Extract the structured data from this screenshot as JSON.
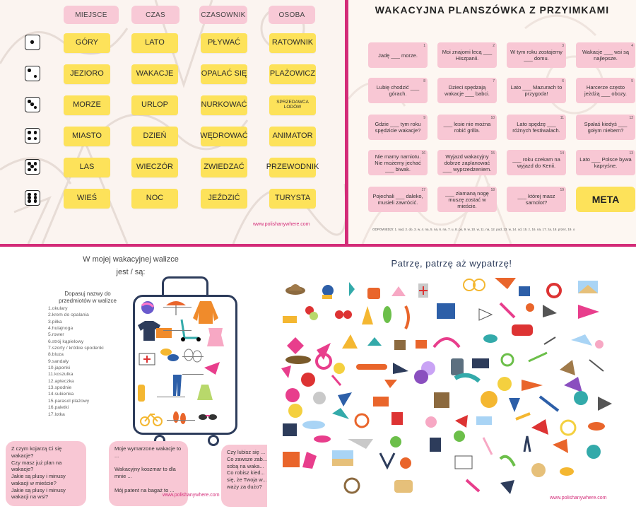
{
  "board_game": {
    "headers": [
      "MIEJSCE",
      "CZAS",
      "CZASOWNIK",
      "OSOBA"
    ],
    "columns": [
      [
        "GÓRY",
        "JEZIORO",
        "MORZE",
        "MIASTO",
        "LAS",
        "WIEŚ"
      ],
      [
        "LATO",
        "WAKACJE",
        "URLOP",
        "DZIEŃ",
        "WIECZÓR",
        "NOC"
      ],
      [
        "PŁYWAĆ",
        "OPALAĆ SIĘ",
        "NURKOWAĆ",
        "WĘDROWAĆ",
        "ZWIEDZAĆ",
        "JEŹDZIĆ"
      ],
      [
        "RATOWNIK",
        "PLAŻOWICZ",
        "SPRZEDAWCA LODÓW",
        "ANIMATOR",
        "PRZEWODNIK",
        "TURYSTA"
      ]
    ],
    "dice": [
      1,
      2,
      3,
      4,
      5,
      6
    ],
    "url": "www.polishanywhere.com"
  },
  "preposition_game": {
    "title": "WAKACYJNA PLANSZÓWKA Z PRZYIMKAMI",
    "cards": [
      {
        "n": "1",
        "text": "Jadę ___ morze."
      },
      {
        "n": "2",
        "text": "Moi znajomi lecą ___ Hiszpanii."
      },
      {
        "n": "3",
        "text": "W tym roku zostajemy ___ domu."
      },
      {
        "n": "4",
        "text": "Wakacje ___ wsi są najlepsze."
      },
      {
        "n": "8",
        "text": "Lubię chodzić ___ górach."
      },
      {
        "n": "7",
        "text": "Dzieci spędzają wakacje ___ babci."
      },
      {
        "n": "6",
        "text": "Lato ___ Mazurach to przygoda!"
      },
      {
        "n": "5",
        "text": "Harcerze często jeżdżą ___ obozy."
      },
      {
        "n": "9",
        "text": "Gdzie ___ tym roku spędzicie wakacje?"
      },
      {
        "n": "10",
        "text": "___ lesie nie można robić grilla."
      },
      {
        "n": "11",
        "text": "Lato spędzę ___ różnych festiwalach."
      },
      {
        "n": "12",
        "text": "Spałaś kiedyś ___ gołym niebem?"
      },
      {
        "n": "16",
        "text": "Nie mamy namiotu. Nie możemy jechać ___ biwak."
      },
      {
        "n": "15",
        "text": "Wyjazd wakacyjny dobrze zaplanować ___ wyprzedzeniem."
      },
      {
        "n": "14",
        "text": "___ roku czekam na wyjazd do Kenii."
      },
      {
        "n": "13",
        "text": "Lato ___ Polsce bywa kapryśne."
      },
      {
        "n": "17",
        "text": "Pojechali ___ daleko, musieli zawrócić."
      },
      {
        "n": "18",
        "text": "___ złamaną nogę muszę zostać w mieście."
      },
      {
        "n": "19",
        "text": "___ której masz samolot?"
      }
    ],
    "meta": "META",
    "answers": "ODPOWIEDZI: 1. nad, 2. do, 3. w, 4. na, 5. na, 6. na, 7. u, 8. po, 9. w, 10. w, 11. na, 12. pod, 13. w, 14. od, 15. z, 16. na, 17. za, 18. przez, 19. o"
  },
  "suitcase": {
    "title_line1": "W mojej wakacyjnej walizce",
    "title_line2": "jest / są:",
    "instruction": "Dopasuj nazwy do przedmiotów w walizce",
    "items": [
      "okulary",
      "krem do opalania",
      "piłka",
      "hulajnoga",
      "rower",
      "strój kąpielowy",
      "szorty / krótkie spodenki",
      "bluza",
      "sandały",
      "japonki",
      "koszulka",
      "apteczka",
      "spodnie",
      "sukienka",
      "parasol plażowy",
      "paletki",
      "lotka"
    ],
    "questions": [
      "Z czym kojarzą Ci się wakacje?\nCzy masz już plan na wakacje?\nJakie są plusy i minusy wakacji w mieście?\nJakie są plusy i minusy wakacji na wsi?",
      "Moje wymarzone wakacje to ...\n\nWakacyjny koszmar to dla mnie ...\n\nMój patent na bagaż to ...",
      "Czy lubisz się ...\nCo zawsze zab...\nsobą na waka...\nCo robisz kied...\nsię, że Twoja w...\nważy za dużo?"
    ],
    "url": "www.polishanywhere.com"
  },
  "spot_game": {
    "title": "Patrzę, patrzę aż wypatrzę!",
    "url": "www.polishanywhere.com"
  }
}
